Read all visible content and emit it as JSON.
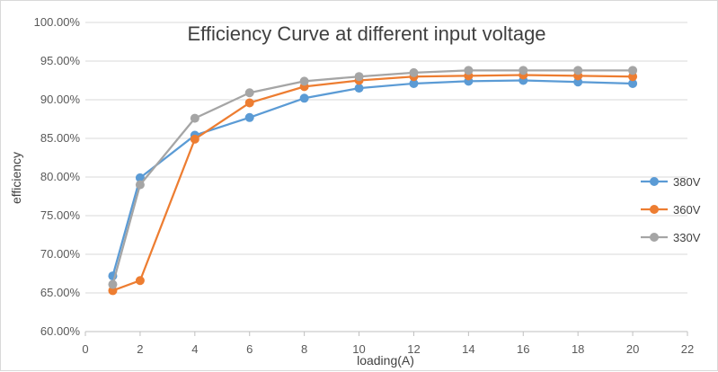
{
  "chart_data": {
    "type": "line",
    "title": "Efficiency Curve at different input voltage",
    "xlabel": "loading(A)",
    "ylabel": "efficiency",
    "xlim": [
      0,
      22
    ],
    "ylim": [
      60,
      100
    ],
    "x_ticks": [
      0,
      2,
      4,
      6,
      8,
      10,
      12,
      14,
      16,
      18,
      20,
      22
    ],
    "x_tick_labels": [
      "0",
      "2",
      "4",
      "6",
      "8",
      "10",
      "12",
      "14",
      "16",
      "18",
      "20",
      "22"
    ],
    "y_ticks": [
      60,
      65,
      70,
      75,
      80,
      85,
      90,
      95,
      100
    ],
    "y_tick_labels": [
      "60.00%",
      "65.00%",
      "70.00%",
      "75.00%",
      "80.00%",
      "85.00%",
      "90.00%",
      "95.00%",
      "100.00%"
    ],
    "grid": "horizontal",
    "legend_position": "right",
    "x": [
      1,
      2,
      4,
      6,
      8,
      10,
      12,
      14,
      16,
      18,
      20
    ],
    "series": [
      {
        "name": "380V",
        "color": "#5b9bd5",
        "values": [
          67.2,
          79.9,
          85.4,
          87.7,
          90.2,
          91.5,
          92.1,
          92.4,
          92.5,
          92.3,
          92.1
        ]
      },
      {
        "name": "360V",
        "color": "#ed7d31",
        "values": [
          65.3,
          66.6,
          84.9,
          89.6,
          91.7,
          92.5,
          93.0,
          93.1,
          93.2,
          93.1,
          93.0
        ]
      },
      {
        "name": "330V",
        "color": "#a5a5a5",
        "values": [
          66.1,
          79.0,
          87.6,
          90.9,
          92.4,
          93.0,
          93.5,
          93.8,
          93.8,
          93.8,
          93.8
        ]
      }
    ]
  }
}
